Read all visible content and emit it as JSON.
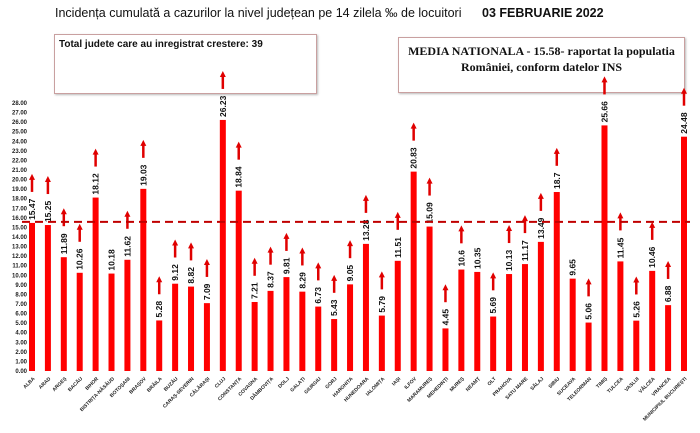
{
  "header": {
    "title": "Incidența cumulată a cazurilor la nivel județean pe 14 zilela ‰ de locuitori",
    "date": "03 FEBRUARIE 2022"
  },
  "info_box": {
    "text": "Total judete care au inregistrat crestere: 39"
  },
  "national_box": {
    "line1": "MEDIA NATIONALA - 15.58-  raportat la populatia",
    "line2": "României, conform datelor INS"
  },
  "chart_data": {
    "type": "bar",
    "title": "Incidența cumulată a cazurilor la nivel județean pe 14 zilela ‰ de locuitori",
    "xlabel": "",
    "ylabel": "",
    "ylim": [
      0,
      28
    ],
    "ytick_step": 1,
    "grid": false,
    "bar_color": "#ff0000",
    "reference_line": {
      "value": 15.58,
      "style": "dashed",
      "color": "#c00000"
    },
    "categories": [
      "ALBA",
      "ARAD",
      "ARGEȘ",
      "BACĂU",
      "BIHOR",
      "BISTRIȚA-NĂSĂUD",
      "BOTOȘANI",
      "BRAȘOV",
      "BRĂILA",
      "BUZĂU",
      "CARAȘ-SEVERIN",
      "CĂLĂRAȘI",
      "CLUJ",
      "CONSTANȚA",
      "COVASNA",
      "DÂMBOVIȚA",
      "DOLJ",
      "GALAȚI",
      "GIURGIU",
      "GORJ",
      "HARGHITA",
      "HUNEDOARA",
      "IALOMIȚA",
      "IAȘI",
      "ILFOV",
      "MARAMUREȘ",
      "MEHEDINȚI",
      "MUREȘ",
      "NEAMȚ",
      "OLT",
      "PRAHOVA",
      "SATU MARE",
      "SĂLAJ",
      "SIBIU",
      "SUCEAVA",
      "TELEORMAN",
      "TIMIȘ",
      "TULCEA",
      "VASLUI",
      "VÂLCEA",
      "VRANCEA",
      "MUNICIPIUL BUCUREȘTI"
    ],
    "values": [
      15.47,
      15.25,
      11.89,
      10.26,
      18.12,
      10.18,
      11.62,
      19.03,
      5.28,
      9.12,
      8.82,
      7.09,
      26.23,
      18.84,
      7.21,
      8.37,
      9.81,
      8.29,
      6.73,
      5.43,
      9.05,
      13.28,
      5.79,
      11.51,
      20.83,
      15.09,
      4.45,
      10.6,
      10.35,
      5.69,
      10.13,
      11.17,
      13.49,
      18.7,
      9.65,
      5.06,
      25.66,
      11.45,
      5.26,
      10.46,
      6.88,
      24.48
    ],
    "value_labels": [
      "15.47",
      "15.25",
      "11.89",
      "10.26",
      "18.12",
      "10.18",
      "11.62",
      "19.03",
      "5.28",
      "9.12",
      "8.82",
      "7.09",
      "26.23",
      "18.84",
      "7.21",
      "8.37",
      "9.81",
      "8.29",
      "6.73",
      "5.43",
      "9.05",
      "13.28",
      "5.79",
      "11.51",
      "20.83",
      "15.09",
      "4.45",
      "10.6",
      "10.35",
      "5.69",
      "10.13",
      "11.17",
      "13.49",
      "18.7",
      "9.65",
      "5.06",
      "25.66",
      "11.45",
      "5.26",
      "10.46",
      "6.88",
      "24.48"
    ],
    "increase": [
      true,
      true,
      true,
      true,
      true,
      false,
      true,
      true,
      true,
      true,
      true,
      true,
      true,
      true,
      true,
      true,
      true,
      true,
      true,
      true,
      true,
      true,
      true,
      true,
      true,
      true,
      true,
      true,
      false,
      true,
      true,
      true,
      true,
      true,
      false,
      true,
      true,
      true,
      true,
      true,
      true,
      true
    ],
    "increase_marker": "up-arrow-icon"
  }
}
